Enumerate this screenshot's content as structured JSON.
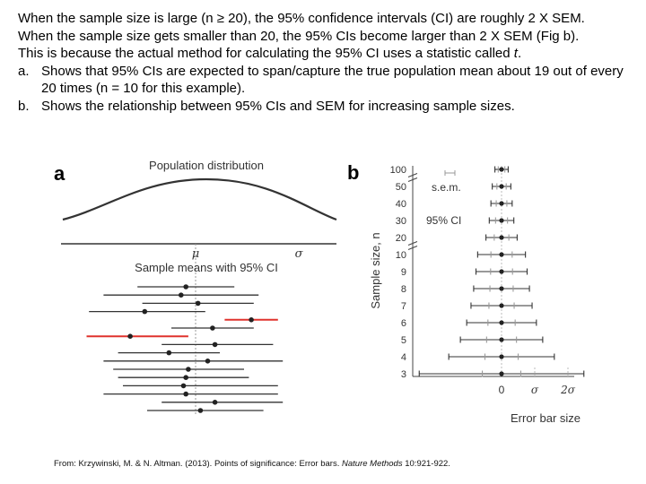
{
  "text": {
    "line1": "When the sample size is large (n ≥ 20), the 95% confidence intervals (CI) are roughly 2 X SEM.",
    "line2": "When the sample size gets smaller than 20, the 95% CIs become larger than 2 X SEM (Fig b).",
    "line3_pre": "This is because the actual method for calculating the 95% CI uses a statistic called ",
    "line3_t": "t",
    "line3_post": ".",
    "item_a_marker": "a.",
    "item_a": "Shows that 95% CIs are expected to span/capture the true population mean about 19 out of every 20 times (n = 10 for this example).",
    "item_b_marker": "b.",
    "item_b": "Shows the relationship between 95% CIs and SEM for increasing sample sizes."
  },
  "figure_a": {
    "panel_label": "a",
    "title": "Population distribution",
    "mu_label": "μ",
    "sigma_label": "σ",
    "sample_title": "Sample means with 95% CI"
  },
  "figure_b": {
    "panel_label": "b",
    "ylabel": "Sample size, n",
    "xlabel": "Error bar size",
    "legend_sem": "s.e.m.",
    "legend_ci": "95% CI",
    "x_tick_0": "0",
    "x_tick_1": "σ",
    "x_tick_2": "2σ"
  },
  "citation": {
    "pre": "From: Krzywinski, M. & N. Altman. (2013). Points of significance: Error bars. ",
    "journal": "Nature Methods",
    "post": " 10:921-922."
  },
  "colors": {
    "line": "#333333",
    "grey": "#999999",
    "red": "#e0332d",
    "lightgrey": "#bbbbbb"
  },
  "chart_data": [
    {
      "type": "scatter",
      "title": "Sample means with 95% CI",
      "xlabel": "",
      "ylabel": "",
      "xlim": [
        -2.6,
        3.0
      ],
      "samples": [
        {
          "mean": -0.2,
          "low": -1.2,
          "high": 0.8,
          "color": "#333333"
        },
        {
          "mean": -0.3,
          "low": -1.9,
          "high": 1.3,
          "color": "#333333"
        },
        {
          "mean": 0.05,
          "low": -1.1,
          "high": 1.2,
          "color": "#333333"
        },
        {
          "mean": -1.05,
          "low": -2.2,
          "high": 0.2,
          "color": "#333333"
        },
        {
          "mean": 1.15,
          "low": 0.6,
          "high": 1.7,
          "color": "#e0332d"
        },
        {
          "mean": 0.35,
          "low": -0.5,
          "high": 1.2,
          "color": "#333333"
        },
        {
          "mean": -1.35,
          "low": -2.25,
          "high": -0.15,
          "color": "#e0332d"
        },
        {
          "mean": 0.4,
          "low": -0.7,
          "high": 1.6,
          "color": "#333333"
        },
        {
          "mean": -0.55,
          "low": -1.6,
          "high": 0.5,
          "color": "#333333"
        },
        {
          "mean": 0.25,
          "low": -1.9,
          "high": 1.8,
          "color": "#333333"
        },
        {
          "mean": -0.15,
          "low": -1.7,
          "high": 1.0,
          "color": "#333333"
        },
        {
          "mean": -0.2,
          "low": -1.6,
          "high": 1.1,
          "color": "#333333"
        },
        {
          "mean": -0.25,
          "low": -1.5,
          "high": 1.7,
          "color": "#333333"
        },
        {
          "mean": -0.2,
          "low": -1.9,
          "high": 1.7,
          "color": "#333333"
        },
        {
          "mean": 0.4,
          "low": -0.7,
          "high": 1.8,
          "color": "#333333"
        },
        {
          "mean": 0.1,
          "low": -1.0,
          "high": 1.4,
          "color": "#333333"
        }
      ]
    },
    {
      "type": "line",
      "title": "",
      "xlabel": "Error bar size",
      "ylabel": "Sample size, n",
      "categories": [
        "100",
        "50",
        "40",
        "30",
        "20",
        "10",
        "9",
        "8",
        "7",
        "6",
        "5",
        "4",
        "3"
      ],
      "series": [
        {
          "name": "s.e.m.",
          "values": [
            0.1,
            0.14,
            0.16,
            0.18,
            0.22,
            0.32,
            0.33,
            0.35,
            0.38,
            0.41,
            0.45,
            0.5,
            0.58
          ]
        },
        {
          "name": "95% CI",
          "values": [
            0.2,
            0.28,
            0.32,
            0.37,
            0.47,
            0.72,
            0.77,
            0.84,
            0.92,
            1.05,
            1.24,
            1.59,
            2.48
          ]
        }
      ]
    }
  ]
}
